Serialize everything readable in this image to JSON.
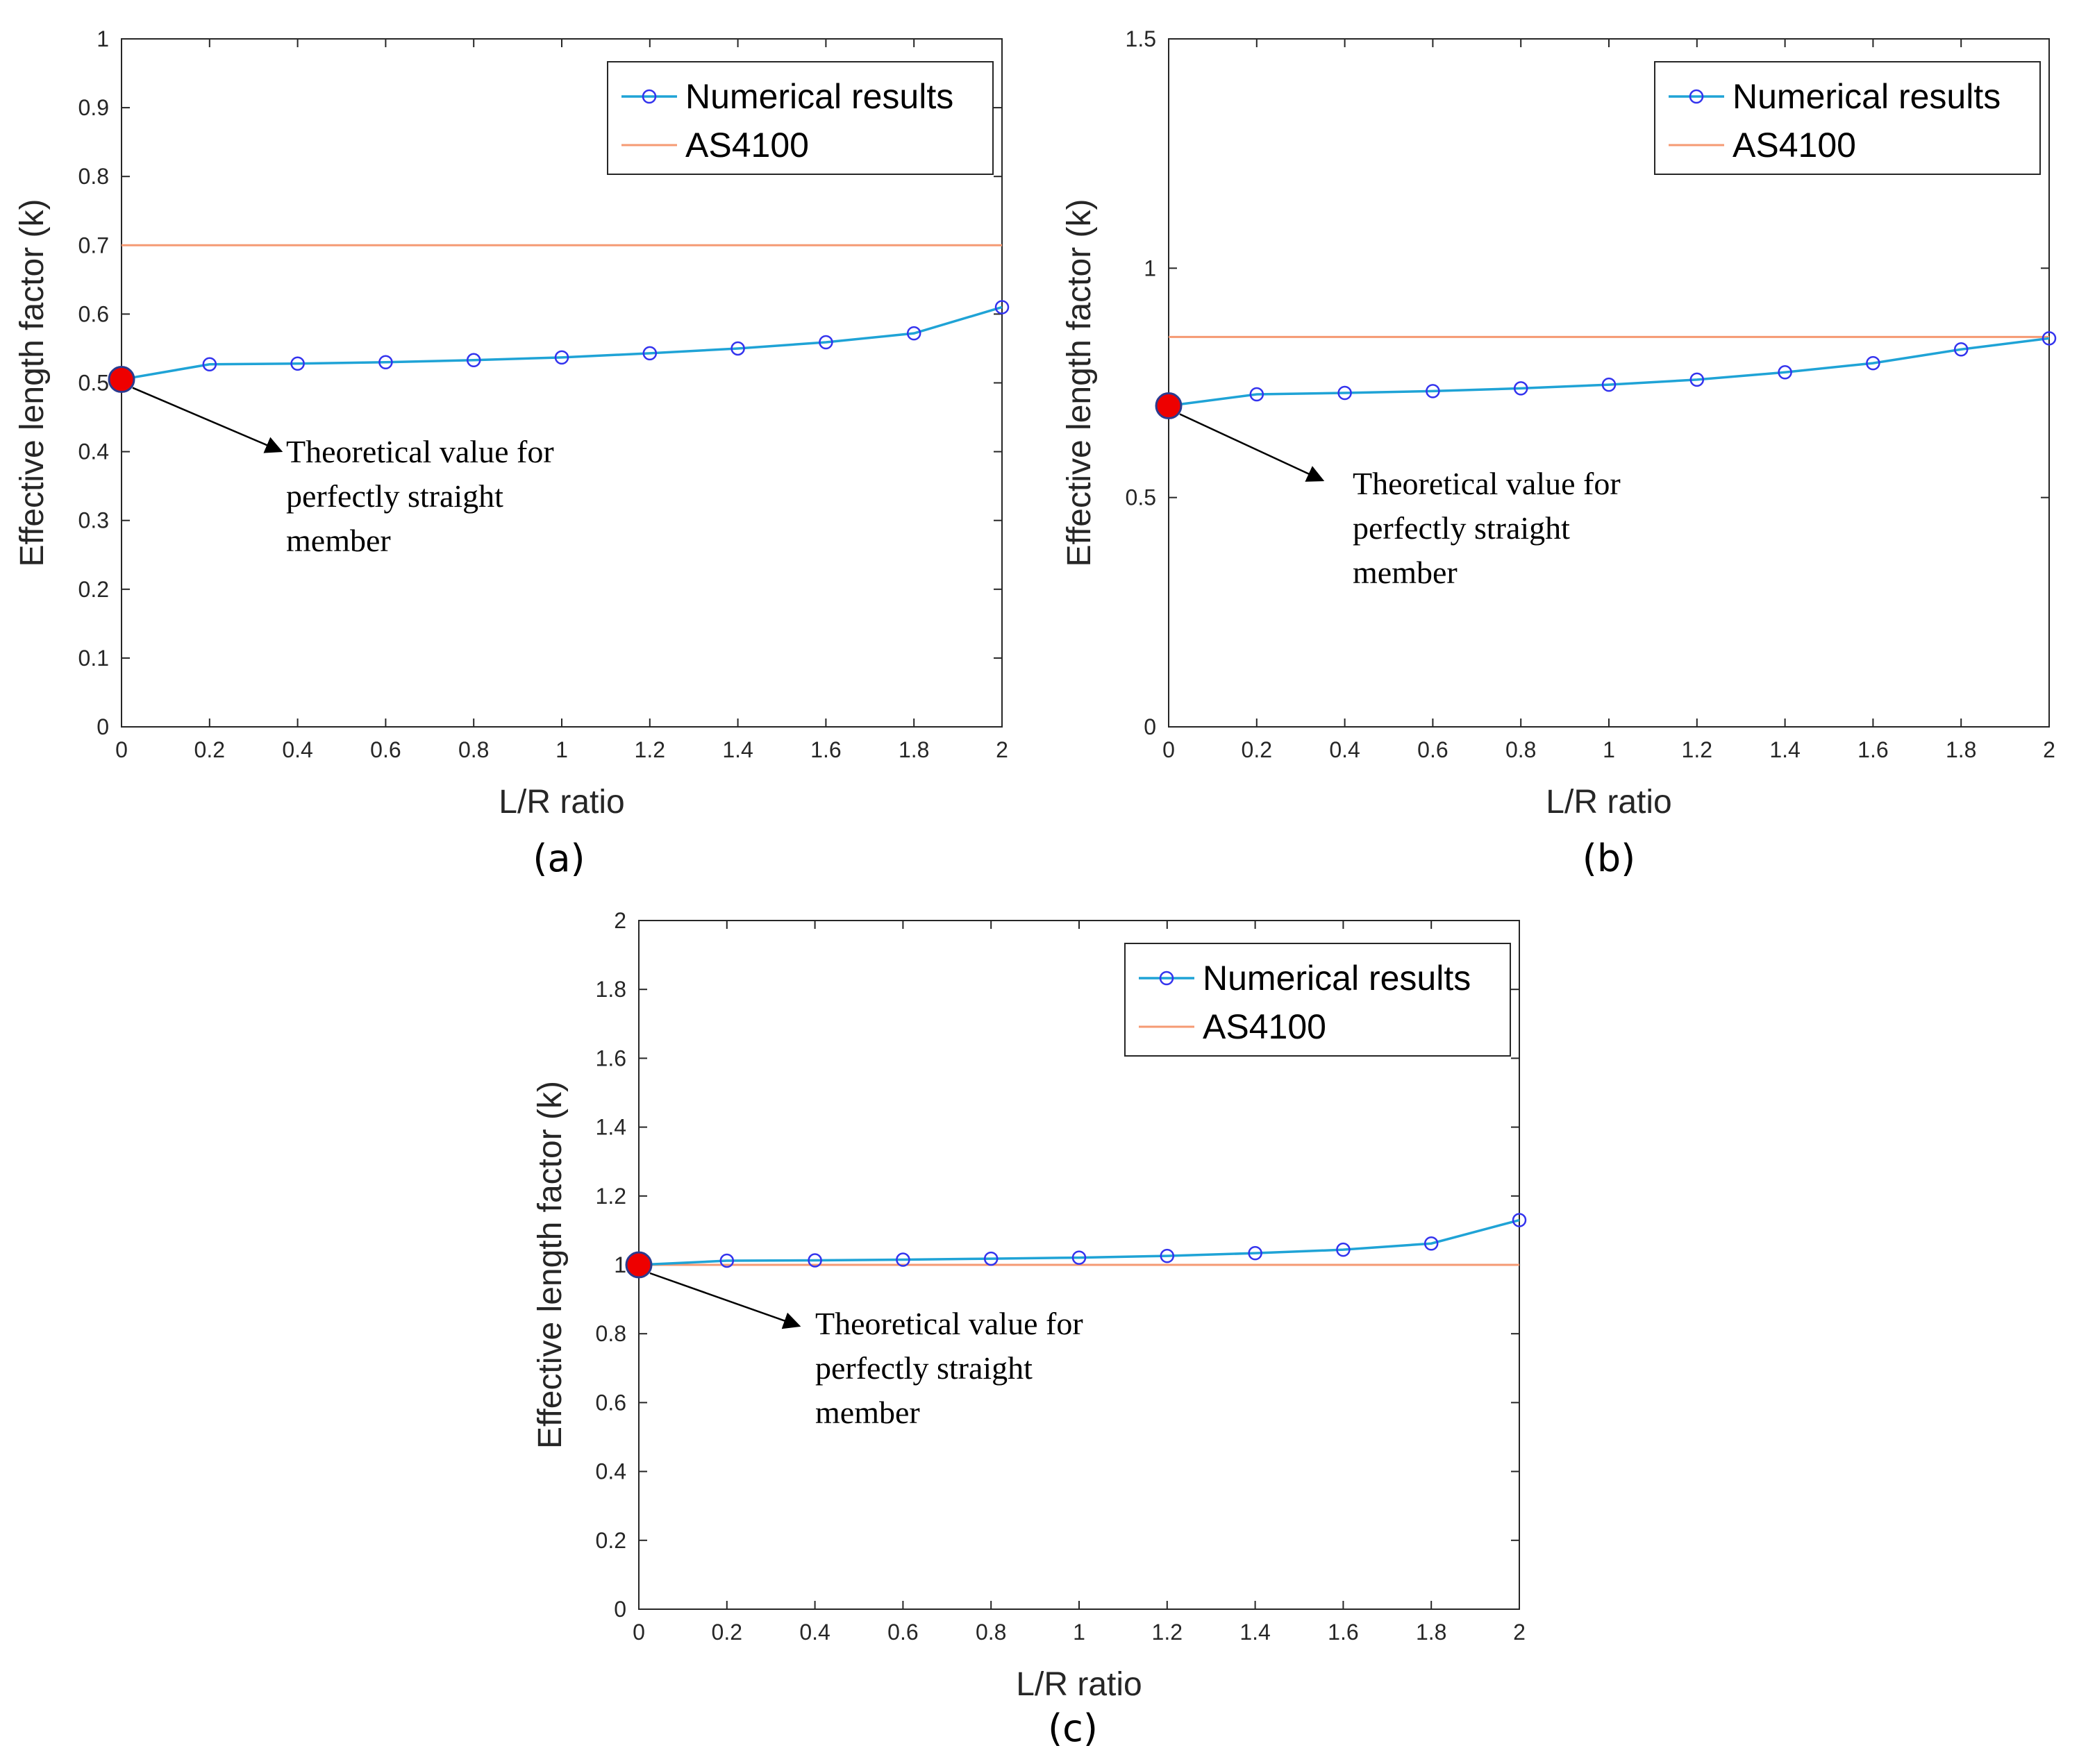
{
  "chart_data": [
    {
      "type": "line",
      "panel_label": "(a)",
      "xlabel": "L/R ratio",
      "ylabel": "Effective length factor (k)",
      "xlim": [
        0,
        2
      ],
      "ylim": [
        0,
        1
      ],
      "xticks": [
        0,
        0.2,
        0.4,
        0.6,
        0.8,
        1,
        1.2,
        1.4,
        1.6,
        1.8,
        2
      ],
      "xtick_labels": [
        "0",
        "0.2",
        "0.4",
        "0.6",
        "0.8",
        "1",
        "1.2",
        "1.4",
        "1.6",
        "1.8",
        "2"
      ],
      "yticks": [
        0,
        0.1,
        0.2,
        0.3,
        0.4,
        0.5,
        0.6,
        0.7,
        0.8,
        0.9,
        1
      ],
      "ytick_labels": [
        "0",
        "0.1",
        "0.2",
        "0.3",
        "0.4",
        "0.5",
        "0.6",
        "0.7",
        "0.8",
        "0.9",
        "1"
      ],
      "x": [
        0,
        0.2,
        0.4,
        0.6,
        0.8,
        1.0,
        1.2,
        1.4,
        1.6,
        1.8,
        2.0
      ],
      "series": [
        {
          "name": "Numerical results",
          "color": "#1fa3d6",
          "marker_color": "#3333ee",
          "values": [
            0.505,
            0.527,
            0.528,
            0.53,
            0.533,
            0.537,
            0.543,
            0.55,
            0.559,
            0.572,
            0.61
          ]
        },
        {
          "name": "AS4100",
          "color": "#f59a73",
          "constant": 0.7
        }
      ],
      "highlight_point": {
        "x": 0,
        "y": 0.505,
        "color": "#ee0000"
      },
      "annotation": {
        "lines": [
          "Theoretical value for",
          "perfectly straight",
          "member"
        ]
      }
    },
    {
      "type": "line",
      "panel_label": "(b)",
      "xlabel": "L/R ratio",
      "ylabel": "Effective length factor (k)",
      "xlim": [
        0,
        2
      ],
      "ylim": [
        0,
        1.5
      ],
      "xticks": [
        0,
        0.2,
        0.4,
        0.6,
        0.8,
        1,
        1.2,
        1.4,
        1.6,
        1.8,
        2
      ],
      "xtick_labels": [
        "0",
        "0.2",
        "0.4",
        "0.6",
        "0.8",
        "1",
        "1.2",
        "1.4",
        "1.6",
        "1.8",
        "2"
      ],
      "yticks": [
        0,
        0.5,
        1,
        1.5
      ],
      "ytick_labels": [
        "0",
        "0.5",
        "1",
        "1.5"
      ],
      "x": [
        0,
        0.2,
        0.4,
        0.6,
        0.8,
        1.0,
        1.2,
        1.4,
        1.6,
        1.8,
        2.0
      ],
      "series": [
        {
          "name": "Numerical results",
          "color": "#1fa3d6",
          "marker_color": "#3333ee",
          "values": [
            0.7,
            0.725,
            0.728,
            0.732,
            0.738,
            0.746,
            0.757,
            0.773,
            0.793,
            0.823,
            0.847
          ]
        },
        {
          "name": "AS4100",
          "color": "#f59a73",
          "constant": 0.85
        }
      ],
      "highlight_point": {
        "x": 0,
        "y": 0.7,
        "color": "#ee0000"
      },
      "annotation": {
        "lines": [
          "Theoretical value for",
          "perfectly straight",
          "member"
        ]
      }
    },
    {
      "type": "line",
      "panel_label": "(c)",
      "xlabel": "L/R ratio",
      "ylabel": "Effective length factor (k)",
      "xlim": [
        0,
        2
      ],
      "ylim": [
        0,
        2
      ],
      "xticks": [
        0,
        0.2,
        0.4,
        0.6,
        0.8,
        1,
        1.2,
        1.4,
        1.6,
        1.8,
        2
      ],
      "xtick_labels": [
        "0",
        "0.2",
        "0.4",
        "0.6",
        "0.8",
        "1",
        "1.2",
        "1.4",
        "1.6",
        "1.8",
        "2"
      ],
      "yticks": [
        0,
        0.2,
        0.4,
        0.6,
        0.8,
        1,
        1.2,
        1.4,
        1.6,
        1.8,
        2
      ],
      "ytick_labels": [
        "0",
        "0.2",
        "0.4",
        "0.6",
        "0.8",
        "1",
        "1.2",
        "1.4",
        "1.6",
        "1.8",
        "2"
      ],
      "x": [
        0,
        0.2,
        0.4,
        0.6,
        0.8,
        1.0,
        1.2,
        1.4,
        1.6,
        1.8,
        2.0
      ],
      "series": [
        {
          "name": "Numerical results",
          "color": "#1fa3d6",
          "marker_color": "#3333ee",
          "values": [
            1.0,
            1.012,
            1.013,
            1.015,
            1.018,
            1.021,
            1.026,
            1.034,
            1.044,
            1.062,
            1.13
          ]
        },
        {
          "name": "AS4100",
          "color": "#f59a73",
          "constant": 1.0
        }
      ],
      "highlight_point": {
        "x": 0,
        "y": 1.0,
        "color": "#ee0000"
      },
      "annotation": {
        "lines": [
          "Theoretical value for",
          "perfectly straight",
          "member"
        ]
      }
    }
  ]
}
